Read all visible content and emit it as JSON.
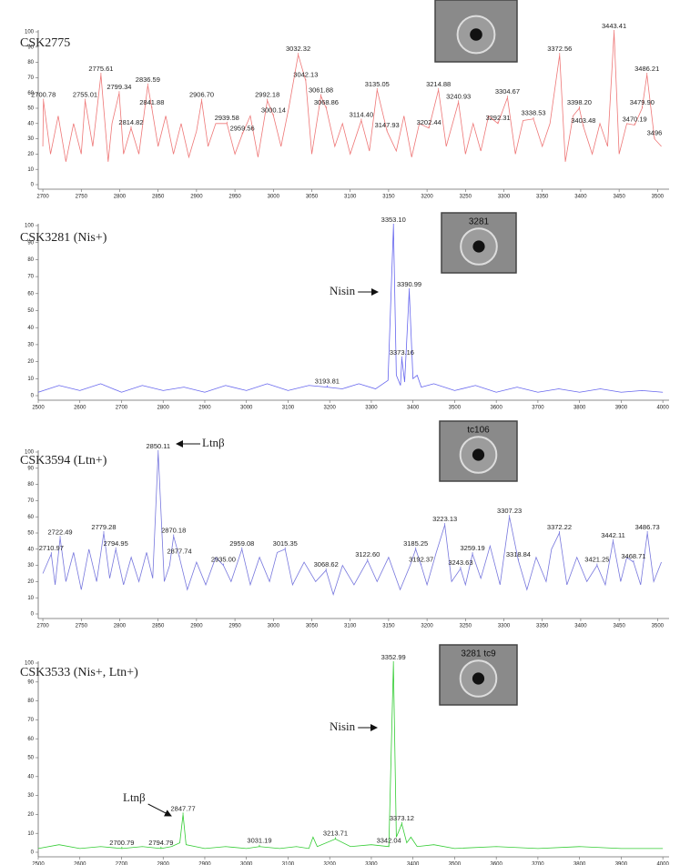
{
  "chart_data": [
    {
      "type": "line",
      "title": "CSK2775",
      "color": "#ee7777",
      "xlim": [
        2694,
        3515
      ],
      "ylim": [
        0,
        100
      ],
      "xticks": [
        2700,
        2750,
        2800,
        2850,
        2900,
        2950,
        3000,
        3050,
        3100,
        3150,
        3200,
        3250,
        3300,
        3350,
        3400,
        3450,
        3500
      ],
      "yticks": [
        0,
        10,
        20,
        30,
        40,
        50,
        60,
        70,
        80,
        90,
        100
      ],
      "x": [
        2700,
        2700.78,
        2710,
        2720,
        2730,
        2740,
        2750,
        2755.01,
        2765,
        2775.61,
        2785,
        2790,
        2799.34,
        2805,
        2814.82,
        2825,
        2836.59,
        2841.88,
        2850,
        2860,
        2870,
        2880,
        2890,
        2900,
        2906.7,
        2915,
        2925,
        2939.58,
        2950,
        2959.56,
        2970,
        2980,
        2992.18,
        3000.14,
        3010,
        3020,
        3032.32,
        3042.13,
        3050,
        3061.88,
        3068.86,
        3080,
        3090,
        3100,
        3114.4,
        3125,
        3135.05,
        3147.93,
        3160,
        3170,
        3180,
        3190,
        3202.44,
        3214.88,
        3225,
        3240.93,
        3250,
        3260,
        3270,
        3280,
        3292.31,
        3304.67,
        3315,
        3325,
        3338.53,
        3350,
        3360,
        3372.56,
        3380,
        3390,
        3398.2,
        3403.48,
        3415,
        3425,
        3435,
        3443.41,
        3450,
        3460,
        3470.19,
        3479.9,
        3486.21,
        3496,
        3505
      ],
      "values": [
        25,
        55,
        20,
        45,
        15,
        40,
        20,
        55,
        25,
        72,
        15,
        40,
        60,
        20,
        37,
        20,
        65,
        50,
        25,
        45,
        20,
        40,
        18,
        35,
        55,
        25,
        40,
        40,
        20,
        33,
        45,
        18,
        55,
        45,
        25,
        50,
        85,
        68,
        20,
        58,
        50,
        25,
        40,
        20,
        42,
        22,
        62,
        35,
        22,
        45,
        18,
        40,
        37,
        62,
        25,
        54,
        20,
        40,
        22,
        45,
        40,
        57,
        20,
        42,
        43,
        25,
        40,
        85,
        15,
        45,
        50,
        38,
        20,
        40,
        25,
        100,
        20,
        40,
        39,
        50,
        72,
        30,
        25
      ],
      "peaks": {
        "x": [
          2700.78,
          2755.01,
          2775.61,
          2799.34,
          2814.82,
          2836.59,
          2841.88,
          2906.7,
          2939.58,
          2959.56,
          2992.18,
          3000.14,
          3032.32,
          3042.13,
          3061.88,
          3068.86,
          3114.4,
          3135.05,
          3147.93,
          3202.44,
          3214.88,
          3240.93,
          3292.31,
          3304.67,
          3338.53,
          3372.56,
          3398.2,
          3403.48,
          3443.41,
          3470.19,
          3479.9,
          3486.21,
          3496
        ],
        "y": [
          55,
          55,
          72,
          60,
          37,
          65,
          50,
          55,
          40,
          33,
          55,
          45,
          85,
          68,
          58,
          50,
          42,
          62,
          35,
          37,
          62,
          54,
          40,
          57,
          43,
          85,
          50,
          38,
          100,
          39,
          50,
          72,
          30
        ],
        "labels": [
          "2700.78",
          "2755.01",
          "2775.61",
          "2799.34",
          "2814.82",
          "2836.59",
          "2841.88",
          "2906.70",
          "2939.58",
          "2959.56",
          "2992.18",
          "3000.14",
          "3032.32",
          "3042.13",
          "3061.88",
          "3068.86",
          "3114.40",
          "3135.05",
          "3147.93",
          "3202.44",
          "3214.88",
          "3240.93",
          "3292.31",
          "3304.67",
          "3338.53",
          "3372.56",
          "3398.20",
          "3403.48",
          "3443.41",
          "3470.19",
          "3479.90",
          "3486.21",
          "3496"
        ]
      },
      "annotations": []
    },
    {
      "type": "line",
      "title": "CSK3281 (Nis+)",
      "color": "#6666ee",
      "xlim": [
        2500,
        4015
      ],
      "ylim": [
        0,
        100
      ],
      "xticks": [
        2500,
        2600,
        2700,
        2800,
        2900,
        3000,
        3100,
        3200,
        3300,
        3400,
        3500,
        3600,
        3700,
        3800,
        3900,
        4000
      ],
      "yticks": [
        0,
        10,
        20,
        30,
        40,
        50,
        60,
        70,
        80,
        90,
        100
      ],
      "x": [
        2500,
        2550,
        2600,
        2650,
        2700,
        2750,
        2800,
        2850,
        2900,
        2950,
        3000,
        3050,
        3100,
        3150,
        3193.81,
        3230,
        3270,
        3310,
        3340,
        3353.1,
        3360,
        3370,
        3373.16,
        3380,
        3390.99,
        3400,
        3410,
        3420,
        3450,
        3500,
        3550,
        3600,
        3650,
        3700,
        3750,
        3800,
        3850,
        3900,
        3950,
        4000
      ],
      "values": [
        2,
        6,
        3,
        7,
        2,
        6,
        3,
        5,
        2,
        6,
        3,
        7,
        3,
        6,
        5,
        4,
        7,
        4,
        9,
        100,
        12,
        6,
        22,
        8,
        62,
        10,
        12,
        5,
        7,
        3,
        6,
        2,
        5,
        2,
        4,
        2,
        4,
        2,
        3,
        2
      ],
      "peaks": {
        "x": [
          3193.81,
          3353.1,
          3373.16,
          3390.99
        ],
        "y": [
          5,
          100,
          22,
          62
        ],
        "labels": [
          "3193.81",
          "3353.10",
          "3373.16",
          "3390.99"
        ]
      },
      "annotations": [
        "Nisin"
      ],
      "inset_text": "3281"
    },
    {
      "type": "line",
      "title": "CSK3594 (Ltn+)",
      "color": "#7777dd",
      "xlim": [
        2694,
        3515
      ],
      "ylim": [
        0,
        100
      ],
      "xticks": [
        2700,
        2750,
        2800,
        2850,
        2900,
        2950,
        3000,
        3050,
        3100,
        3150,
        3200,
        3250,
        3300,
        3350,
        3400,
        3450,
        3500
      ],
      "yticks": [
        0,
        10,
        20,
        30,
        40,
        50,
        60,
        70,
        80,
        90,
        100
      ],
      "x": [
        2700,
        2710.97,
        2716,
        2722.49,
        2730,
        2740,
        2750,
        2760,
        2770,
        2779.28,
        2787,
        2794.95,
        2805,
        2815,
        2825,
        2835,
        2843,
        2850.11,
        2858,
        2865,
        2870.18,
        2877.74,
        2888,
        2900,
        2912,
        2925,
        2935,
        2945,
        2959.08,
        2970,
        2982,
        2995,
        3005,
        3015.35,
        3025,
        3040,
        3055,
        3068.62,
        3078,
        3090,
        3105,
        3122.6,
        3135,
        3150,
        3165,
        3178,
        3185.25,
        3192.37,
        3200,
        3212,
        3223.13,
        3232,
        3243.63,
        3250,
        3259.19,
        3270,
        3282,
        3295,
        3307.23,
        3318.84,
        3330,
        3342,
        3355,
        3362,
        3372.22,
        3382,
        3395,
        3408,
        3421.25,
        3432,
        3442.11,
        3452,
        3460,
        3468.71,
        3478,
        3486.73,
        3495,
        3505
      ],
      "values": [
        25,
        37,
        18,
        47,
        20,
        38,
        15,
        40,
        20,
        50,
        22,
        40,
        18,
        35,
        20,
        38,
        22,
        100,
        20,
        30,
        48,
        35,
        15,
        32,
        18,
        35,
        30,
        20,
        40,
        18,
        35,
        20,
        38,
        40,
        18,
        32,
        20,
        27,
        12,
        30,
        18,
        33,
        20,
        35,
        15,
        30,
        40,
        30,
        18,
        38,
        55,
        20,
        28,
        18,
        37,
        22,
        42,
        18,
        60,
        33,
        15,
        35,
        20,
        40,
        50,
        18,
        35,
        20,
        30,
        18,
        45,
        20,
        35,
        32,
        18,
        50,
        20,
        32
      ],
      "peaks": {
        "x": [
          2710.97,
          2722.49,
          2779.28,
          2794.95,
          2850.11,
          2870.18,
          2877.74,
          2935,
          2959.08,
          3015.35,
          3068.62,
          3122.6,
          3185.25,
          3192.37,
          3223.13,
          3243.63,
          3259.19,
          3307.23,
          3318.84,
          3372.22,
          3421.25,
          3442.11,
          3468.71,
          3486.73
        ],
        "y": [
          37,
          47,
          50,
          40,
          100,
          48,
          35,
          30,
          40,
          40,
          27,
          33,
          40,
          30,
          55,
          28,
          37,
          60,
          33,
          50,
          30,
          45,
          32,
          50
        ],
        "labels": [
          "2710.97",
          "2722.49",
          "2779.28",
          "2794.95",
          "2850.11",
          "2870.18",
          "2877.74",
          "2935.00",
          "2959.08",
          "3015.35",
          "3068.62",
          "3122.60",
          "3185.25",
          "3192.37",
          "3223.13",
          "3243.63",
          "3259.19",
          "3307.23",
          "3318.84",
          "3372.22",
          "3421.25",
          "3442.11",
          "3468.71",
          "3486.73"
        ]
      },
      "annotations": [
        "Ltnβ"
      ],
      "inset_text": "tc106"
    },
    {
      "type": "line",
      "title": "CSK3533 (Nis+, Ltn+)",
      "color": "#33cc33",
      "xlim": [
        2500,
        4015
      ],
      "ylim": [
        0,
        100
      ],
      "xticks": [
        2500,
        2600,
        2700,
        2800,
        2900,
        3000,
        3100,
        3200,
        3300,
        3400,
        3500,
        3600,
        3700,
        3800,
        3900,
        4000
      ],
      "yticks": [
        0,
        10,
        20,
        30,
        40,
        50,
        60,
        70,
        80,
        90,
        100
      ],
      "x": [
        2500,
        2550,
        2600,
        2650,
        2700.79,
        2750,
        2794.79,
        2820,
        2840,
        2847.77,
        2855,
        2900,
        2950,
        3000,
        3031.19,
        3080,
        3120,
        3150,
        3160,
        3170,
        3213.71,
        3250,
        3300,
        3342.04,
        3352.99,
        3360,
        3373.12,
        3385,
        3395,
        3410,
        3450,
        3500,
        3600,
        3700,
        3800,
        3900,
        4000
      ],
      "values": [
        2,
        4,
        2,
        3,
        2,
        3,
        2,
        3,
        5,
        20,
        4,
        2,
        3,
        2,
        3,
        2,
        3,
        2,
        8,
        3,
        7,
        3,
        4,
        3,
        100,
        8,
        15,
        5,
        8,
        3,
        4,
        2,
        3,
        2,
        3,
        2,
        2
      ],
      "peaks": {
        "x": [
          2700.79,
          2794.79,
          2847.77,
          3031.19,
          3213.71,
          3342.04,
          3352.99,
          3373.12
        ],
        "y": [
          2,
          2,
          20,
          3,
          7,
          3,
          100,
          15
        ],
        "labels": [
          "2700.79",
          "2794.79",
          "2847.77",
          "3031.19",
          "3213.71",
          "3342.04",
          "3352.99",
          "3373.12"
        ]
      },
      "annotations": [
        "Nisin",
        "Ltnβ"
      ],
      "inset_text": "3281 tc9"
    }
  ]
}
